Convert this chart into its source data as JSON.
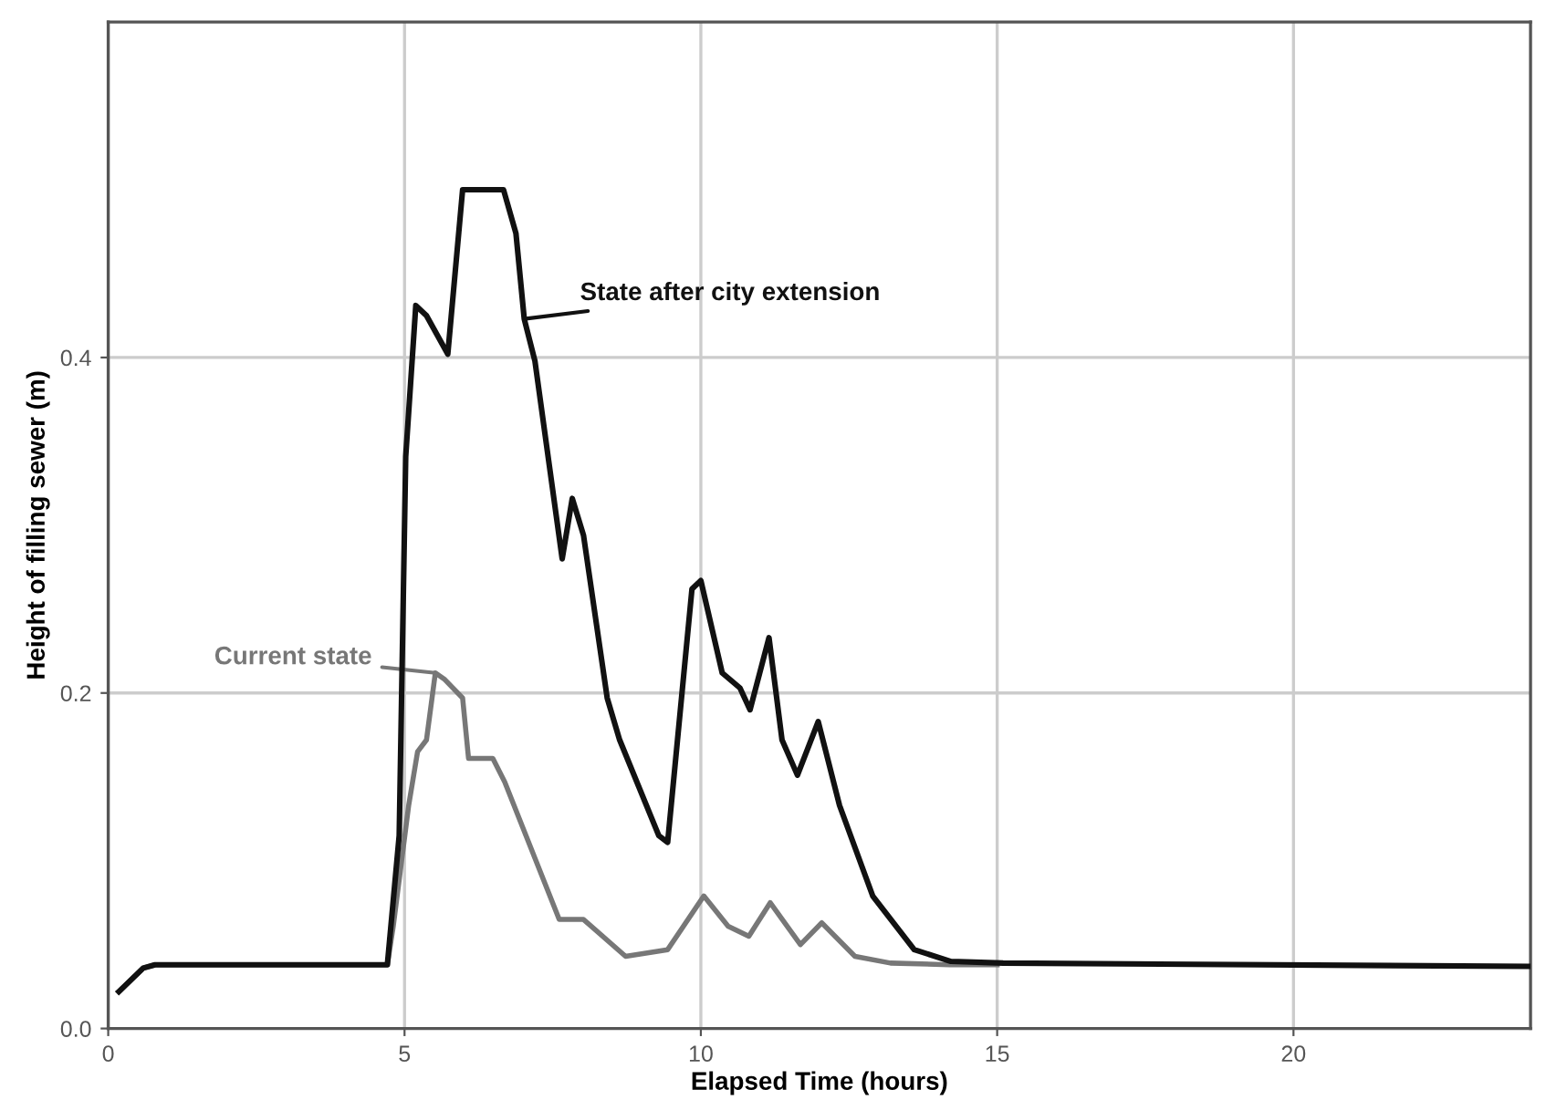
{
  "chart_data": {
    "type": "line",
    "xlabel": "Elapsed Time (hours)",
    "ylabel": "Height of filling sewer (m)",
    "xlim": [
      0,
      24
    ],
    "xticks": [
      0,
      5,
      10,
      15,
      20
    ],
    "ylim": [
      0,
      0.6
    ],
    "yticks": [
      {
        "value": 0,
        "label": "0.0"
      },
      {
        "value": 0.2,
        "label": "0.2"
      },
      {
        "value": 0.4,
        "label": "0.4"
      }
    ],
    "grid": true,
    "line_style": "solid",
    "marker": "none",
    "series": [
      {
        "name": "Current state",
        "color": "#777777",
        "x": [
          0.18,
          0.59,
          0.79,
          4.71,
          4.81,
          5.07,
          5.22,
          5.37,
          5.52,
          5.68,
          5.98,
          6.08,
          6.49,
          6.69,
          7.61,
          8.02,
          8.73,
          9.44,
          10.05,
          10.46,
          10.81,
          11.17,
          11.68,
          12.04,
          12.6,
          13.2,
          14.2,
          15.0
        ],
        "values": [
          0.022,
          0.036,
          0.038,
          0.038,
          0.061,
          0.133,
          0.165,
          0.172,
          0.212,
          0.208,
          0.197,
          0.161,
          0.161,
          0.147,
          0.065,
          0.065,
          0.043,
          0.047,
          0.079,
          0.061,
          0.055,
          0.075,
          0.05,
          0.063,
          0.043,
          0.039,
          0.038,
          0.038
        ]
      },
      {
        "name": "State after city extension",
        "color": "#111111",
        "x": [
          0.18,
          0.59,
          0.79,
          4.71,
          4.91,
          5.02,
          5.19,
          5.37,
          5.73,
          5.98,
          6.67,
          6.88,
          7.02,
          7.2,
          7.66,
          7.83,
          8.02,
          8.42,
          8.63,
          9.29,
          9.44,
          9.85,
          10.0,
          10.36,
          10.66,
          10.83,
          11.15,
          11.37,
          11.63,
          11.98,
          12.34,
          12.9,
          13.6,
          14.22,
          15.1,
          24.0
        ],
        "values": [
          0.022,
          0.036,
          0.038,
          0.038,
          0.115,
          0.341,
          0.431,
          0.425,
          0.402,
          0.5,
          0.5,
          0.474,
          0.423,
          0.398,
          0.28,
          0.316,
          0.294,
          0.197,
          0.172,
          0.115,
          0.111,
          0.262,
          0.267,
          0.212,
          0.203,
          0.19,
          0.233,
          0.172,
          0.151,
          0.183,
          0.133,
          0.079,
          0.047,
          0.04,
          0.039,
          0.037
        ]
      }
    ]
  }
}
